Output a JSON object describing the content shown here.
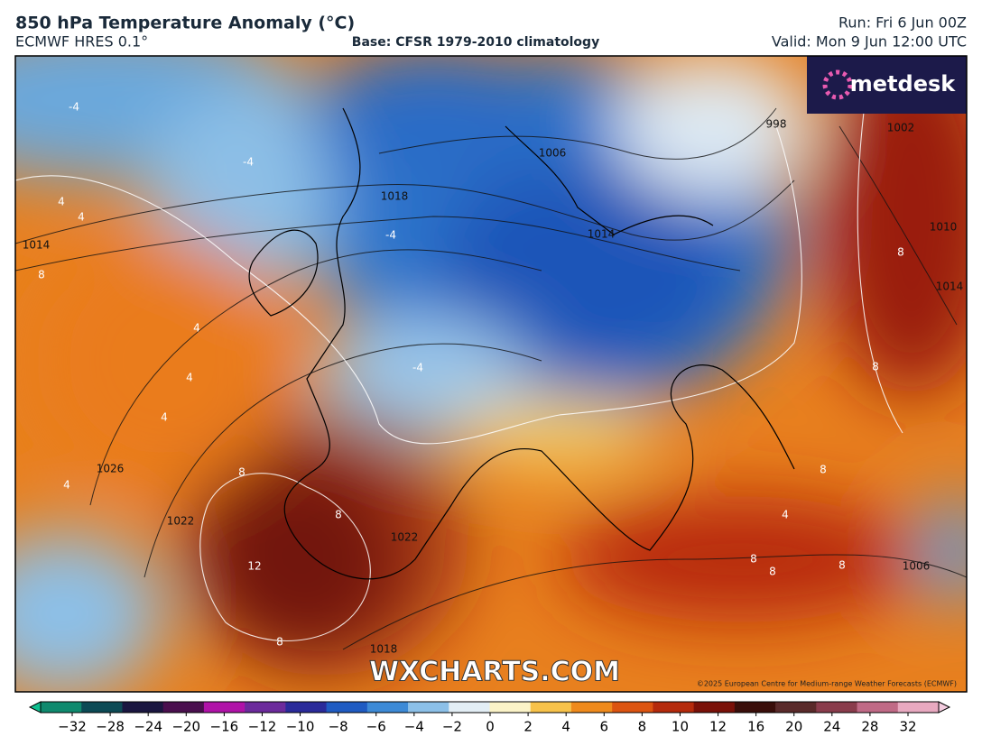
{
  "header": {
    "title": "850 hPa Temperature Anomaly (°C)",
    "model": "ECMWF HRES 0.1°",
    "base": "Base: CFSR 1979-2010 climatology",
    "run": "Run: Fri 6 Jun 00Z",
    "valid": "Valid: Mon 9 Jun 12:00 UTC"
  },
  "map": {
    "logo": "metdesk",
    "watermark": "WXCHARTS.COM",
    "copyright": "©2025 European Centre for Medium-range Weather Forecasts (ECMWF)",
    "isobar_labels": [
      "1006",
      "1018",
      "1014",
      "1014",
      "998",
      "1002",
      "1010",
      "1014",
      "1026",
      "1022",
      "1022",
      "1018",
      "1006"
    ],
    "anomaly_labels": [
      "-4",
      "-4",
      "-4",
      "-4",
      "4",
      "4",
      "8",
      "4",
      "4",
      "4",
      "8",
      "8",
      "12",
      "8",
      "4",
      "8",
      "8",
      "8",
      "8",
      "8",
      "4",
      "8"
    ]
  },
  "colorbar": {
    "ticks": [
      {
        "value": -32,
        "label": "−32"
      },
      {
        "value": -28,
        "label": "−28"
      },
      {
        "value": -24,
        "label": "−24"
      },
      {
        "value": -20,
        "label": "−20"
      },
      {
        "value": -16,
        "label": "−16"
      },
      {
        "value": -12,
        "label": "−12"
      },
      {
        "value": -10,
        "label": "−10"
      },
      {
        "value": -8,
        "label": "−8"
      },
      {
        "value": -6,
        "label": "−6"
      },
      {
        "value": -4,
        "label": "−4"
      },
      {
        "value": -2,
        "label": "−2"
      },
      0,
      2,
      4,
      6,
      8,
      10,
      12,
      16,
      20,
      24,
      28,
      32
    ],
    "colors": [
      "#0f8a6e",
      "#0c4a55",
      "#1a1640",
      "#4a0f4e",
      "#b012a8",
      "#6c2a9c",
      "#2a2a9a",
      "#1f5bc2",
      "#3d8ad6",
      "#8cc0e8",
      "#e3eef5",
      "#fbf3c8",
      "#f7c24a",
      "#ef8a1c",
      "#dc5410",
      "#b52a0c",
      "#7a1008",
      "#3a0e0a",
      "#5a2a2a",
      "#8a3c4c",
      "#c06a86",
      "#e8a9c0"
    ],
    "low_color": "#0fbf8f",
    "high_color": "#f4cde0"
  }
}
